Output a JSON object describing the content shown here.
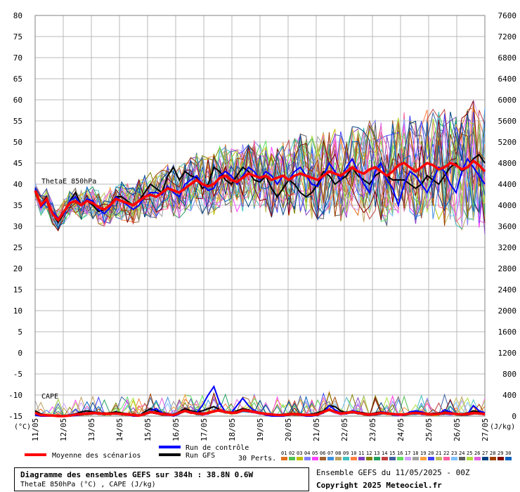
{
  "chart_data": {
    "type": "line",
    "title": "Diagramme des ensembles GEFS sur 384h : 38.8N 0.6W",
    "subtitle": "ThetaE 850hPa (°C) , CAPE (J/kg)",
    "left_axis_unit": "(°C)",
    "right_axis_unit": "(J/kg)",
    "left_ticks": [
      "80",
      "75",
      "70",
      "65",
      "60",
      "55",
      "50",
      "45",
      "40",
      "35",
      "30",
      "25",
      "20",
      "15",
      "10",
      "5",
      "0",
      "-5",
      "-10",
      "-15"
    ],
    "right_ticks": [
      "7600",
      "7200",
      "6800",
      "6400",
      "6000",
      "5600",
      "5200",
      "4800",
      "4400",
      "4000",
      "3600",
      "3200",
      "2800",
      "2400",
      "2000",
      "1600",
      "1200",
      "800",
      "400",
      "0"
    ],
    "left_ylim": [
      -15,
      80
    ],
    "right_ylim": [
      0,
      7600
    ],
    "x_dates": [
      "11/05",
      "12/05",
      "13/05",
      "14/05",
      "15/05",
      "16/05",
      "17/05",
      "18/05",
      "19/05",
      "20/05",
      "21/05",
      "22/05",
      "23/05",
      "24/05",
      "25/05",
      "26/05",
      "27/05"
    ],
    "inner_labels": {
      "thetae": "ThetaE 850hPa",
      "cape": "CAPE"
    },
    "series": [
      {
        "name": "Moyenne des scénarios",
        "color": "#ff0000",
        "thetae": [
          38.5,
          35,
          36.5,
          33,
          31.5,
          33.5,
          35.5,
          36,
          35,
          36,
          35.5,
          34.5,
          34,
          35,
          36.5,
          36,
          35.5,
          35,
          36,
          37,
          37.5,
          37,
          38,
          39,
          38.5,
          38,
          39,
          40,
          41,
          40,
          39.5,
          40,
          41.5,
          42,
          41,
          40.5,
          41.5,
          42.5,
          42,
          41.5,
          42,
          41,
          41.5,
          42,
          41,
          42,
          42.5,
          42,
          41.5,
          41,
          42,
          43,
          42.5,
          42,
          43,
          44,
          43,
          42.5,
          43.5,
          44,
          43,
          42,
          43,
          44.5,
          45,
          44,
          43,
          44,
          45,
          44.5,
          43.5,
          44,
          45,
          44.5,
          43.5,
          44,
          45.5,
          44.5,
          43
        ],
        "cape": [
          60,
          20,
          15,
          10,
          0,
          0,
          10,
          30,
          40,
          50,
          60,
          50,
          40,
          45,
          50,
          40,
          30,
          20,
          10,
          40,
          80,
          60,
          40,
          30,
          20,
          60,
          100,
          70,
          50,
          40,
          60,
          90,
          110,
          80,
          60,
          70,
          110,
          100,
          80,
          60,
          40,
          30,
          20,
          20,
          30,
          40,
          30,
          20,
          20,
          30,
          80,
          120,
          80,
          50,
          60,
          80,
          60,
          40,
          30,
          40,
          60,
          50,
          40,
          30,
          30,
          50,
          60,
          50,
          40,
          30,
          40,
          60,
          50,
          40,
          30,
          40,
          60,
          50,
          40
        ]
      },
      {
        "name": "Run de contrôle",
        "color": "#0000ff",
        "thetae": [
          39,
          34.5,
          36,
          33.5,
          32,
          33,
          36,
          37,
          35,
          36.5,
          36,
          34,
          33,
          34.5,
          37,
          36,
          35,
          34,
          35,
          37,
          38,
          38,
          37.5,
          39.5,
          38,
          37,
          40,
          41,
          42,
          40,
          38.5,
          39,
          42,
          43,
          42,
          40,
          42,
          44,
          43,
          41,
          43,
          42,
          40,
          42,
          41,
          43,
          44,
          42,
          40,
          39.5,
          42,
          45,
          43,
          41,
          44,
          46,
          43,
          40,
          38,
          43,
          45,
          41,
          39,
          35,
          40,
          43,
          42,
          40,
          38,
          41,
          44,
          43,
          40,
          38,
          43,
          46,
          44,
          42,
          40
        ],
        "cape": [
          20,
          0,
          0,
          0,
          0,
          0,
          0,
          10,
          30,
          40,
          50,
          40,
          30,
          40,
          50,
          40,
          30,
          0,
          0,
          40,
          100,
          140,
          60,
          30,
          0,
          40,
          100,
          80,
          60,
          200,
          400,
          560,
          250,
          80,
          60,
          200,
          340,
          200,
          100,
          60,
          20,
          0,
          0,
          0,
          20,
          40,
          20,
          0,
          0,
          20,
          60,
          200,
          120,
          60,
          40,
          100,
          80,
          40,
          20,
          40,
          80,
          60,
          40,
          20,
          20,
          80,
          100,
          80,
          40,
          20,
          40,
          120,
          80,
          40,
          20,
          40,
          200,
          100,
          60
        ]
      },
      {
        "name": "Run GFS",
        "color": "#000000",
        "thetae": [
          38,
          35,
          37,
          33,
          31,
          33,
          36,
          38,
          35,
          36,
          35,
          33.5,
          34,
          35,
          37,
          37,
          36,
          35,
          36,
          38,
          40,
          39,
          38,
          42,
          44,
          41,
          43,
          42,
          41.5,
          39,
          40,
          44,
          43,
          41,
          40,
          42,
          44,
          43,
          41,
          40.5,
          42,
          39,
          37,
          39,
          41,
          40,
          38,
          37,
          38,
          40,
          43,
          42,
          40,
          41,
          42,
          44,
          42,
          41,
          40,
          42,
          43,
          42,
          41,
          41,
          41,
          40,
          39,
          40,
          42,
          41,
          40,
          42,
          44,
          45,
          43,
          44,
          46,
          47,
          45
        ],
        "cape": [
          100,
          40,
          20,
          0,
          0,
          0,
          0,
          40,
          80,
          100,
          80,
          60,
          40,
          60,
          80,
          60,
          40,
          20,
          0,
          80,
          140,
          100,
          60,
          40,
          20,
          80,
          140,
          100,
          80,
          100,
          140,
          180,
          120,
          80,
          60,
          100,
          140,
          120,
          80,
          60,
          40,
          20,
          0,
          0,
          20,
          40,
          20,
          20,
          40,
          60,
          100,
          200,
          180,
          100,
          60,
          100,
          80,
          60,
          40,
          60,
          80,
          60,
          40,
          40,
          40,
          60,
          80,
          60,
          40,
          40,
          60,
          80,
          60,
          40,
          40,
          60,
          100,
          80,
          60
        ]
      }
    ],
    "perturbations_label": "30 Perts.",
    "perturbation_ids": [
      "01",
      "02",
      "03",
      "04",
      "05",
      "06",
      "07",
      "08",
      "09",
      "10",
      "11",
      "12",
      "13",
      "14",
      "15",
      "16",
      "17",
      "18",
      "19",
      "20",
      "21",
      "22",
      "23",
      "24",
      "25",
      "26",
      "27",
      "28",
      "29",
      "30"
    ],
    "perturbation_colors": [
      "#e07020",
      "#50c050",
      "#c0c000",
      "#8080ff",
      "#ff40ff",
      "#a06030",
      "#4090e0",
      "#c0a060",
      "#40c0c0",
      "#ff8040",
      "#8040c0",
      "#808000",
      "#20a060",
      "#c04040",
      "#4060a0",
      "#60e060",
      "#d0a0ff",
      "#a0a0a0",
      "#ffa040",
      "#4040ff",
      "#c0c060",
      "#ff60a0",
      "#80c0ff",
      "#606060",
      "#b0e040",
      "#e060e0",
      "#004080",
      "#a04000",
      "#800000",
      "#0060c0"
    ],
    "legend": {
      "mean": "Moyenne des scénarios",
      "control": "Run de contrôle",
      "gfs": "Run GFS"
    }
  },
  "footer": {
    "title": "Diagramme des ensembles GEFS sur 384h : 38.8N 0.6W",
    "subtitle": "ThetaE 850hPa (°C) , CAPE (J/kg)",
    "run_info": "Ensemble GEFS du 11/05/2025 - 00Z",
    "copyright": "Copyright 2025 Meteociel.fr"
  }
}
